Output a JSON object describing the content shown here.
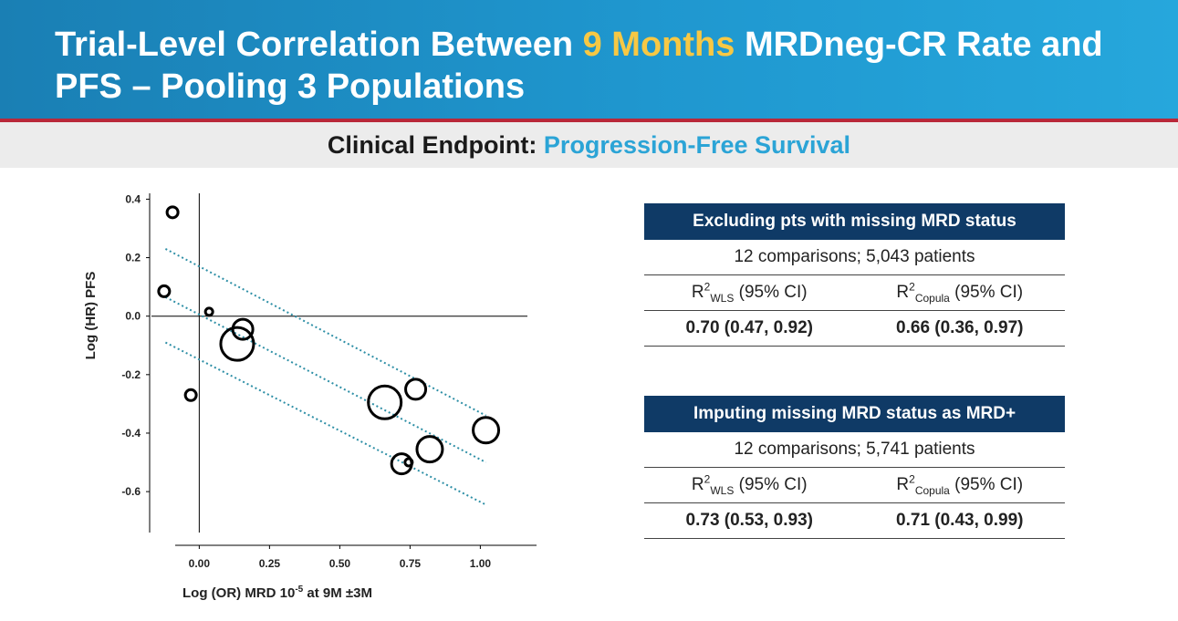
{
  "header": {
    "title_part1": "Trial-Level Correlation Between ",
    "title_highlight": "9 Months",
    "title_part2": " MRDneg-CR Rate and PFS – Pooling 3 Populations",
    "colors": {
      "bar": "#1f97cf",
      "highlight": "#f7c844",
      "rule": "#b9283a"
    }
  },
  "subheader": {
    "label": "Clinical Endpoint: ",
    "value": "Progression-Free Survival"
  },
  "chart_data": {
    "type": "scatter",
    "xlabel_main": "Log (OR) MRD 10",
    "xlabel_sup": "-5",
    "xlabel_rest": " at 9M ±3M",
    "ylabel": "Log (HR) PFS",
    "xlim": [
      -0.17,
      1.2
    ],
    "ylim": [
      -0.74,
      0.42
    ],
    "xticks": [
      "0.00",
      "0.25",
      "0.50",
      "0.75",
      "1.00"
    ],
    "xtick_values": [
      0,
      0.25,
      0.5,
      0.75,
      1.0
    ],
    "yticks": [
      "0.4",
      "0.2",
      "0.0",
      "-0.2",
      "-0.4",
      "-0.6"
    ],
    "ytick_values": [
      0.4,
      0.2,
      0.0,
      -0.2,
      -0.4,
      -0.6
    ],
    "points": [
      {
        "x": -0.095,
        "y": 0.355,
        "size": "small"
      },
      {
        "x": -0.125,
        "y": 0.085,
        "size": "small"
      },
      {
        "x": 0.035,
        "y": 0.015,
        "size": "tiny"
      },
      {
        "x": -0.03,
        "y": -0.27,
        "size": "small"
      },
      {
        "x": 0.155,
        "y": -0.045,
        "size": "medium"
      },
      {
        "x": 0.135,
        "y": -0.095,
        "size": "large"
      },
      {
        "x": 0.66,
        "y": -0.295,
        "size": "large"
      },
      {
        "x": 0.77,
        "y": -0.25,
        "size": "medium"
      },
      {
        "x": 0.72,
        "y": -0.505,
        "size": "medium"
      },
      {
        "x": 0.745,
        "y": -0.5,
        "size": "tiny"
      },
      {
        "x": 0.82,
        "y": -0.455,
        "size": "large_medium"
      },
      {
        "x": 1.02,
        "y": -0.39,
        "size": "large_medium"
      }
    ],
    "regression": {
      "line": [
        {
          "x": -0.12,
          "y": 0.065
        },
        {
          "x": 1.02,
          "y": -0.5
        }
      ],
      "upper": [
        {
          "x": -0.12,
          "y": 0.23
        },
        {
          "x": 1.02,
          "y": -0.34
        }
      ],
      "lower": [
        {
          "x": -0.12,
          "y": -0.09
        },
        {
          "x": 1.02,
          "y": -0.645
        }
      ],
      "color": "#2e8fa6"
    }
  },
  "tables": [
    {
      "heading": "Excluding pts with missing MRD status",
      "summary": "12 comparisons; 5,043 patients",
      "col1_base": "R",
      "col1_sup": "2",
      "col1_sub": "WLS",
      "col1_rest": " (95% CI)",
      "col2_base": "R",
      "col2_sup": "2",
      "col2_sub": "Copula",
      "col2_rest": " (95% CI)",
      "val1": "0.70 (0.47, 0.92)",
      "val2": "0.66 (0.36, 0.97)"
    },
    {
      "heading": "Imputing missing MRD status as MRD+",
      "summary": "12 comparisons; 5,741 patients",
      "col1_base": "R",
      "col1_sup": "2",
      "col1_sub": "WLS",
      "col1_rest": " (95% CI)",
      "col2_base": "R",
      "col2_sup": "2",
      "col2_sub": "Copula",
      "col2_rest": " (95% CI)",
      "val1": "0.73 (0.53, 0.93)",
      "val2": "0.71 (0.43, 0.99)"
    }
  ]
}
